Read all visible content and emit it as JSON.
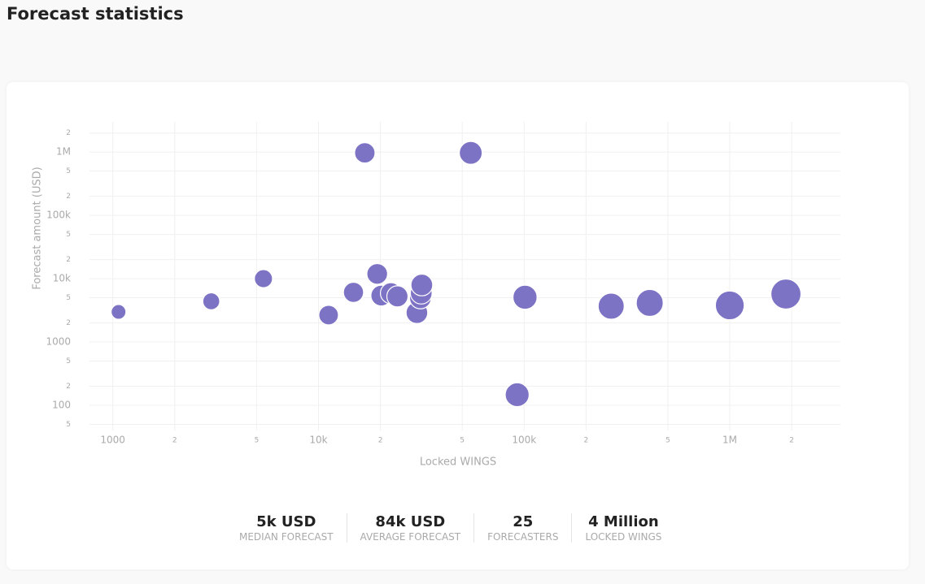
{
  "header": {
    "title": "Forecast statistics"
  },
  "chart_data": {
    "type": "scatter",
    "x_label": "Locked WINGS",
    "y_label": "Forecast amount (USD)",
    "log_x": true,
    "log_y": true,
    "grid": true,
    "color": "#7d73c5",
    "x": [
      1066,
      3010,
      5400,
      16800,
      55000,
      11200,
      14800,
      19300,
      20200,
      22500,
      24200,
      30100,
      31300,
      31600,
      31800,
      92500,
      101000,
      265000,
      408000,
      1000000,
      1875000
    ],
    "series": [
      {
        "name": null,
        "color": "#7d73c5",
        "values": [
          2990,
          4390,
          10000,
          970000,
          970000,
          2660,
          6080,
          11900,
          5410,
          5900,
          5250,
          2900,
          4950,
          5900,
          7950,
          147,
          5090,
          3680,
          4140,
          3790,
          5720
        ]
      }
    ],
    "xlim": [
      770,
      3450000
    ],
    "ylim": [
      40,
      3000000
    ],
    "xticks": [
      1000,
      {
        "value": 2000,
        "label": "2"
      },
      {
        "value": 5000,
        "label": "5"
      },
      {
        "value": 10000,
        "label": "10k"
      },
      {
        "value": 20000,
        "label": "2"
      },
      {
        "value": 50000,
        "label": "5"
      },
      {
        "value": 100000,
        "label": "100k"
      },
      {
        "value": 200000,
        "label": "2"
      },
      {
        "value": 500000,
        "label": "5"
      },
      {
        "value": 1000000,
        "label": "1M"
      },
      {
        "value": 2000000,
        "label": "2"
      }
    ],
    "yticks": [
      {
        "value": 50,
        "label": "5"
      },
      100,
      {
        "value": 200,
        "label": "2"
      },
      {
        "value": 500,
        "label": "5"
      },
      1000,
      {
        "value": 2000,
        "label": "2"
      },
      {
        "value": 5000,
        "label": "5"
      },
      {
        "value": 10000,
        "label": "10k"
      },
      {
        "value": 20000,
        "label": "2"
      },
      {
        "value": 50000,
        "label": "5"
      },
      {
        "value": 100000,
        "label": "100k"
      },
      {
        "value": 200000,
        "label": "2"
      },
      {
        "value": 500000,
        "label": "5"
      },
      {
        "value": 1000000,
        "label": "1M"
      },
      {
        "value": 2000000,
        "label": "2"
      }
    ]
  },
  "stats": [
    {
      "value": "5k USD",
      "label": "MEDIAN FORECAST"
    },
    {
      "value": "84k USD",
      "label": "AVERAGE FORECAST"
    },
    {
      "value": "25",
      "label": "FORECASTERS"
    },
    {
      "value": "4 Million",
      "label": "LOCKED WINGS"
    }
  ]
}
